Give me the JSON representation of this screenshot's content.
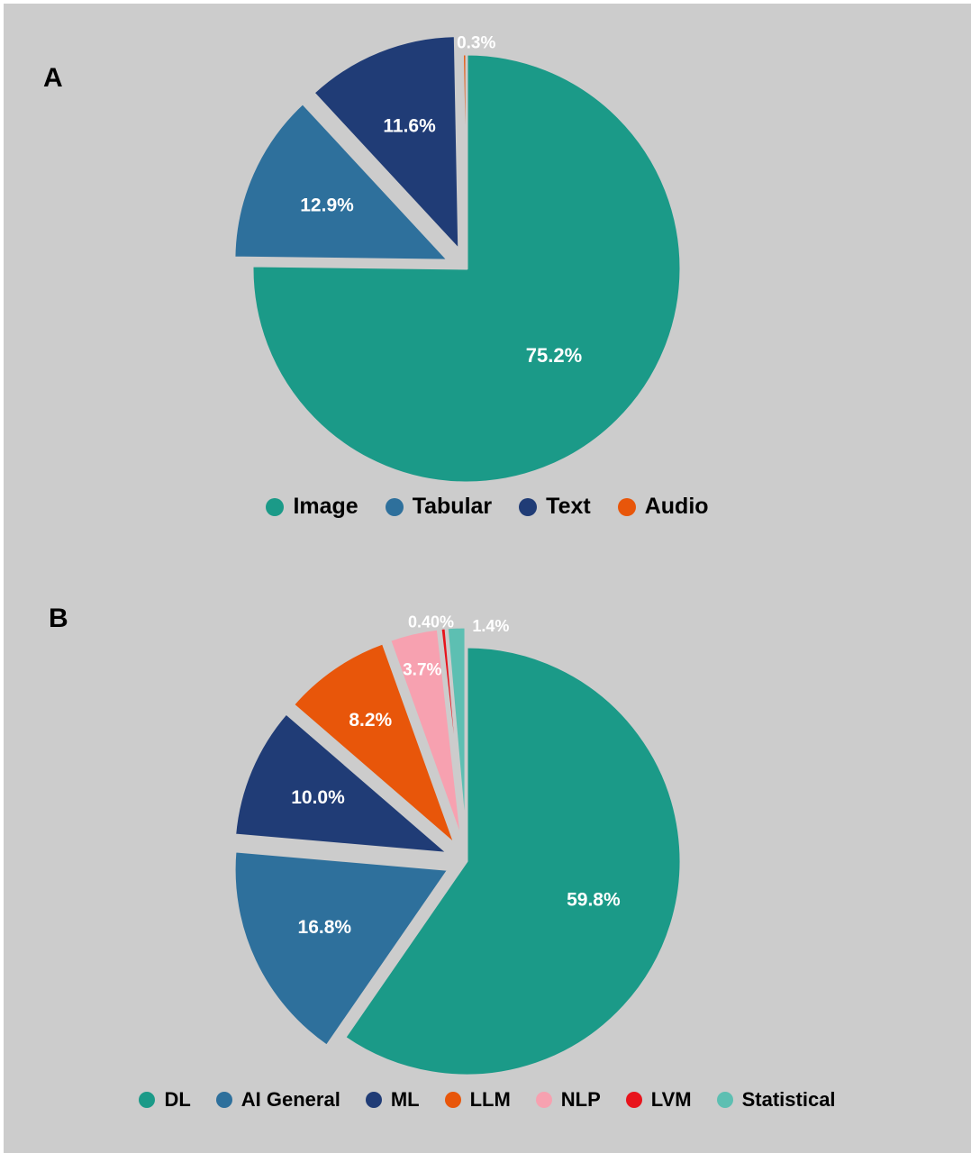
{
  "chart_data": [
    {
      "type": "pie",
      "panel_label": "A",
      "categories": [
        "Image",
        "Tabular",
        "Text",
        "Audio"
      ],
      "values": [
        75.2,
        12.9,
        11.6,
        0.3
      ],
      "data_labels": [
        "75.2%",
        "12.9%",
        "11.6%",
        "0.3%"
      ],
      "colors": [
        "#1b9a88",
        "#2e709c",
        "#203c76",
        "#e8560a"
      ],
      "exploded": [
        false,
        true,
        true,
        false
      ],
      "legend_position": "bottom"
    },
    {
      "type": "pie",
      "panel_label": "B",
      "categories": [
        "DL",
        "AI General",
        "ML",
        "LLM",
        "NLP",
        "LVM",
        "Statistical"
      ],
      "values": [
        59.8,
        16.8,
        10.0,
        8.2,
        3.7,
        0.4,
        1.4
      ],
      "data_labels": [
        "59.8%",
        "16.8%",
        "10.0%",
        "8.2%",
        "3.7%",
        "0.40%",
        "1.4%"
      ],
      "colors": [
        "#1b9a88",
        "#2e709c",
        "#203c76",
        "#e8560a",
        "#f7a1b0",
        "#e8141c",
        "#5dbfb2"
      ],
      "exploded": [
        false,
        true,
        true,
        true,
        true,
        true,
        true
      ],
      "legend_position": "bottom"
    }
  ]
}
